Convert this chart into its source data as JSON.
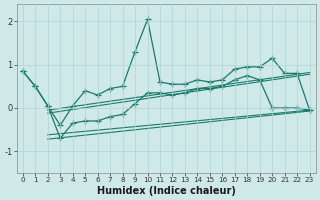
{
  "xlabel": "Humidex (Indice chaleur)",
  "background_color": "#cfe8e8",
  "line_color": "#1a7a6e",
  "grid_color": "#b0d4d4",
  "xlim": [
    -0.5,
    23.5
  ],
  "ylim": [
    -1.5,
    2.4
  ],
  "yticks": [
    -1,
    0,
    1,
    2
  ],
  "xticks": [
    0,
    1,
    2,
    3,
    4,
    5,
    6,
    7,
    8,
    9,
    10,
    11,
    12,
    13,
    14,
    15,
    16,
    17,
    18,
    19,
    20,
    21,
    22,
    23
  ],
  "series1": {
    "x": [
      0,
      1,
      2,
      3,
      4,
      5,
      6,
      7,
      8,
      9,
      10,
      11,
      12,
      13,
      14,
      15,
      16,
      17,
      18,
      19,
      20,
      21,
      22,
      23
    ],
    "y": [
      0.85,
      0.5,
      0.05,
      -0.4,
      0.05,
      0.4,
      0.3,
      0.45,
      0.5,
      1.3,
      2.05,
      0.6,
      0.55,
      0.55,
      0.65,
      0.6,
      0.65,
      0.9,
      0.95,
      0.95,
      1.15,
      0.8,
      0.8,
      -0.05
    ]
  },
  "series2": {
    "x": [
      0,
      1,
      2,
      3,
      4,
      5,
      6,
      7,
      8,
      9,
      10,
      11,
      12,
      13,
      14,
      15,
      16,
      17,
      18,
      19,
      20,
      21,
      22,
      23
    ],
    "y": [
      0.85,
      0.5,
      0.05,
      -0.7,
      -0.35,
      -0.3,
      -0.3,
      -0.2,
      -0.15,
      0.1,
      0.35,
      0.35,
      0.3,
      0.35,
      0.45,
      0.45,
      0.5,
      0.65,
      0.75,
      0.65,
      0.0,
      0.0,
      0.0,
      -0.05
    ]
  },
  "reg_lines": [
    {
      "x0": 2,
      "y0": -0.05,
      "x1": 23,
      "y1": 0.82
    },
    {
      "x0": 2,
      "y0": -0.12,
      "x1": 23,
      "y1": 0.78
    },
    {
      "x0": 2,
      "y0": -0.62,
      "x1": 23,
      "y1": -0.05
    },
    {
      "x0": 2,
      "y0": -0.72,
      "x1": 23,
      "y1": -0.07
    }
  ]
}
